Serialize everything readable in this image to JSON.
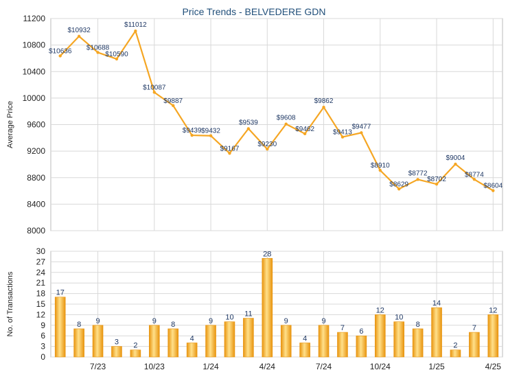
{
  "chart_data": {
    "title": "Price Trends - BELVEDERE GDN",
    "colors": {
      "line": "#f5a623",
      "bar_light": "#ffe08a",
      "bar_dark": "#e8940f",
      "grid": "#d8d8d8",
      "title": "#1f4e79",
      "label": "#1f3864"
    },
    "price_panel": {
      "type": "line",
      "ylabel": "Average Price",
      "ylim": [
        8000,
        11200
      ],
      "yticks": [
        8000,
        8400,
        8800,
        9200,
        9600,
        10000,
        10400,
        10800,
        11200
      ],
      "values": [
        10636,
        10932,
        10688,
        10590,
        11012,
        10087,
        9887,
        9439,
        9432,
        9167,
        9539,
        9230,
        9608,
        9462,
        9862,
        9413,
        9477,
        8910,
        8629,
        8772,
        8702,
        9004,
        8774,
        8604
      ],
      "data_labels": [
        "$10636",
        "$10932",
        "$10688",
        "$10590",
        "$11012",
        "$10087",
        "$9887",
        "$9439",
        "$9432",
        "$9167",
        "$9539",
        "$9230",
        "$9608",
        "$9462",
        "$9862",
        "$9413",
        "$9477",
        "$8910",
        "$8629",
        "$8772",
        "$8702",
        "$9004",
        "$8774",
        "$8604"
      ]
    },
    "volume_panel": {
      "type": "bar",
      "ylabel": "No. of Transactions",
      "ylim": [
        0,
        30
      ],
      "yticks": [
        0,
        3,
        6,
        9,
        12,
        15,
        18,
        21,
        24,
        27,
        30
      ],
      "values": [
        17,
        8,
        9,
        3,
        2,
        9,
        8,
        4,
        9,
        10,
        11,
        28,
        9,
        4,
        9,
        7,
        6,
        12,
        10,
        8,
        14,
        2,
        7,
        12
      ]
    },
    "x_ticks": [
      {
        "label": "7/23",
        "index": 2
      },
      {
        "label": "10/23",
        "index": 5
      },
      {
        "label": "1/24",
        "index": 8
      },
      {
        "label": "4/24",
        "index": 11
      },
      {
        "label": "7/24",
        "index": 14
      },
      {
        "label": "10/24",
        "index": 17
      },
      {
        "label": "1/25",
        "index": 20
      },
      {
        "label": "4/25",
        "index": 23
      }
    ]
  }
}
